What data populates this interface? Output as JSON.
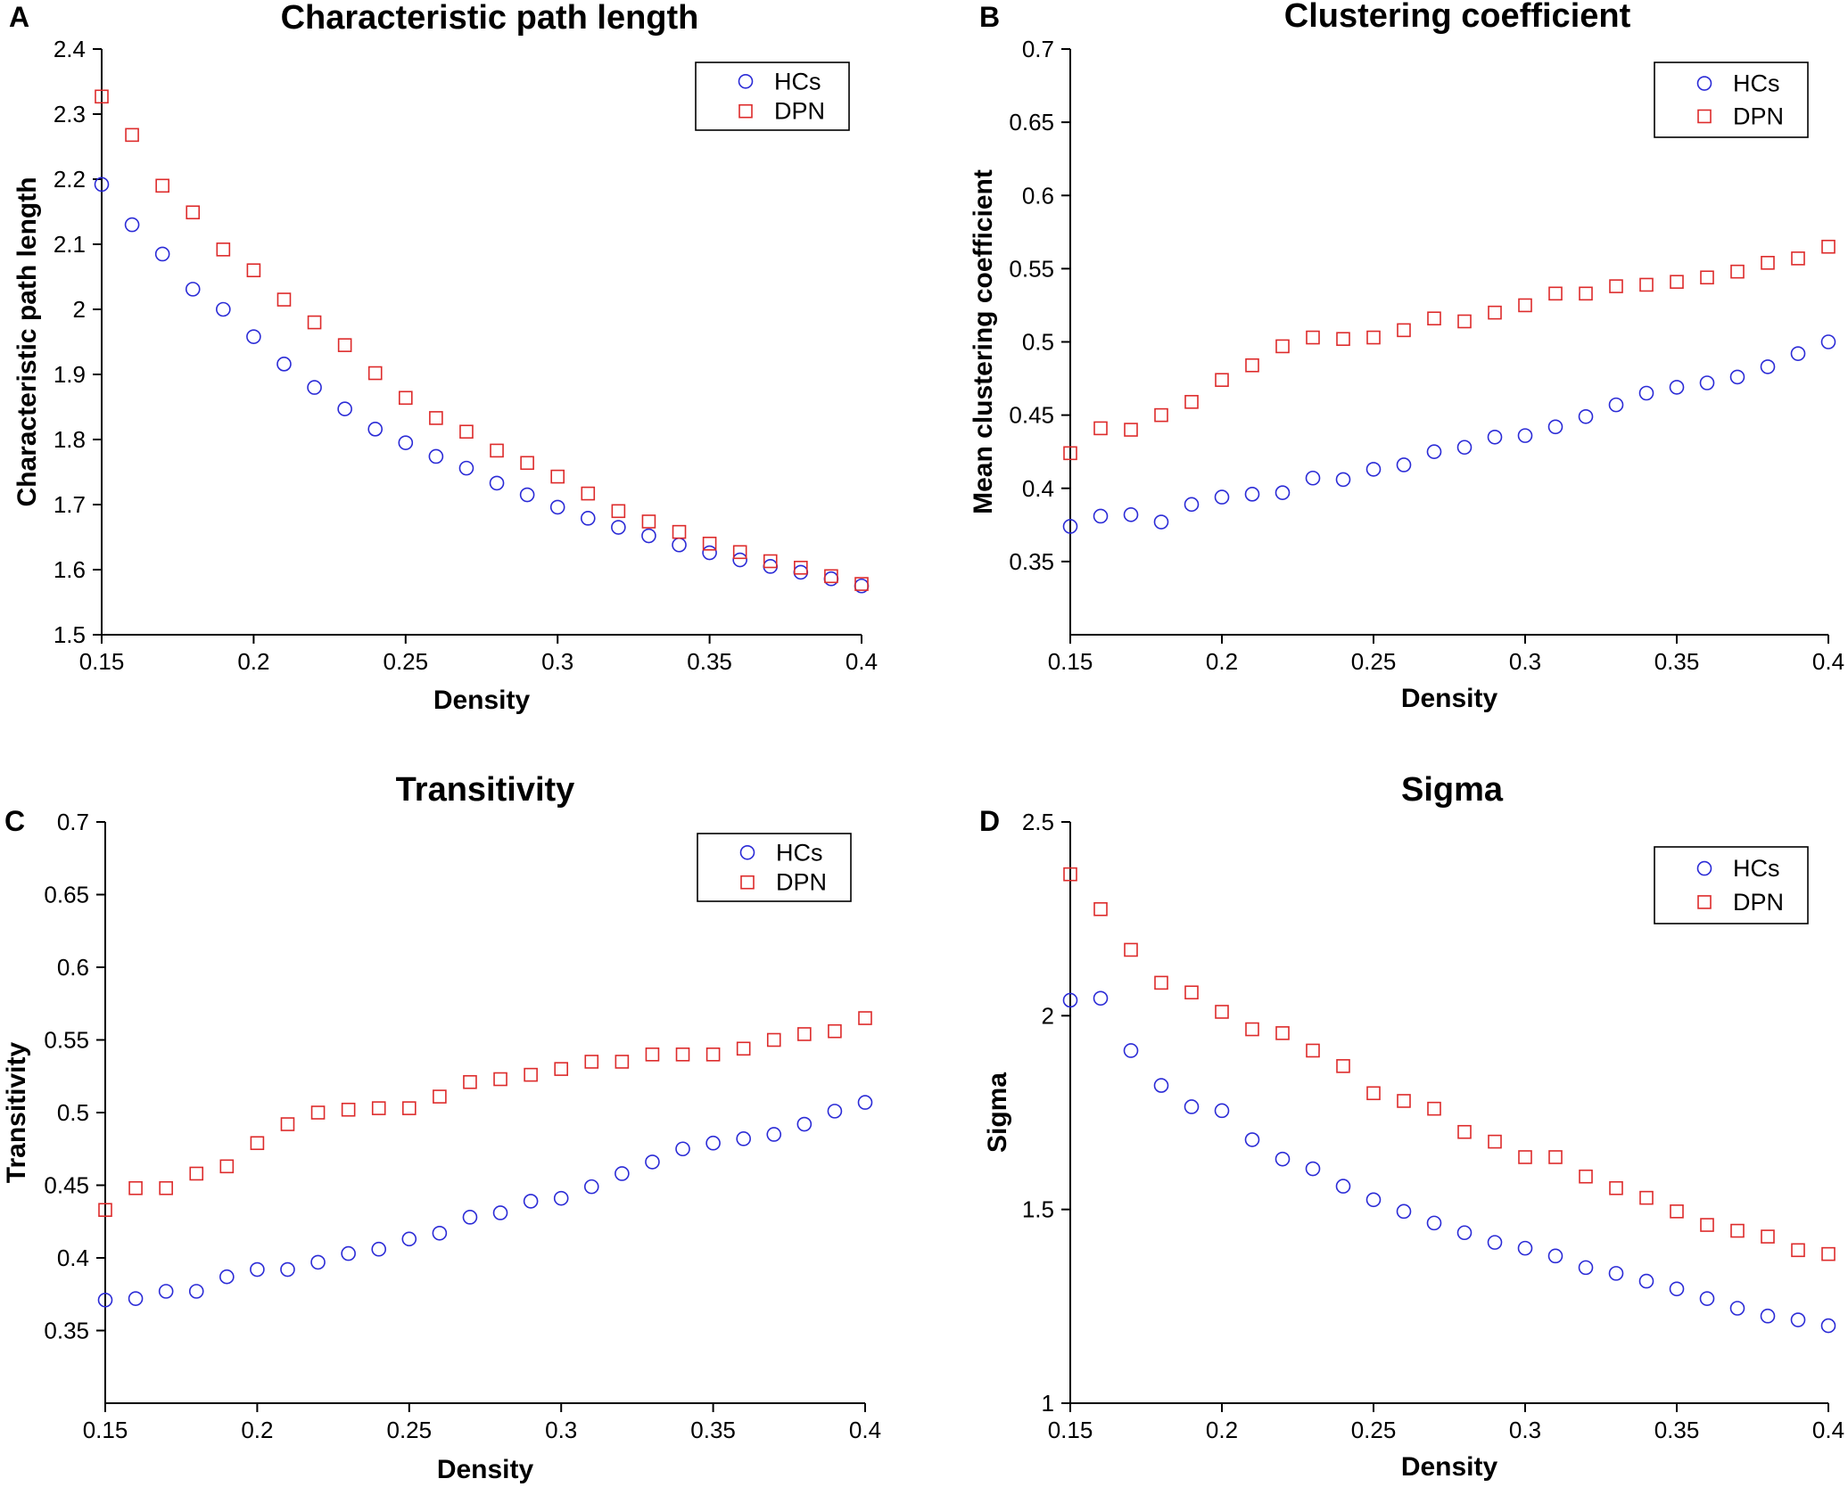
{
  "colors": {
    "hcs": "#2b2bd6",
    "dpn": "#dd2b2b",
    "axis": "#000000"
  },
  "chart_data": [
    {
      "type": "scatter",
      "panel_label": "A",
      "title": "Characteristic path length",
      "xlabel": "Density",
      "ylabel": "Characteristic path length",
      "xlim": [
        0.15,
        0.4
      ],
      "ylim": [
        1.5,
        2.4
      ],
      "xticks": [
        0.15,
        0.2,
        0.25,
        0.3,
        0.35,
        0.4
      ],
      "xtick_labels": [
        "0.15",
        "0.2",
        "0.25",
        "0.3",
        "0.35",
        "0.4"
      ],
      "yticks": [
        1.5,
        1.6,
        1.7,
        1.8,
        1.9,
        2,
        2.1,
        2.2,
        2.3,
        2.4
      ],
      "ytick_labels": [
        "1.5",
        "1.6",
        "1.7",
        "1.8",
        "1.9",
        "2",
        "2.1",
        "2.2",
        "2.3",
        "2.4"
      ],
      "legend_position": "top-right",
      "x": [
        0.15,
        0.16,
        0.17,
        0.18,
        0.19,
        0.2,
        0.21,
        0.22,
        0.23,
        0.24,
        0.25,
        0.26,
        0.27,
        0.28,
        0.29,
        0.3,
        0.31,
        0.32,
        0.33,
        0.34,
        0.35,
        0.36,
        0.37,
        0.38,
        0.39,
        0.4
      ],
      "series": [
        {
          "name": "HCs",
          "marker": "circle",
          "values": [
            2.192,
            2.13,
            2.085,
            2.031,
            2.0,
            1.958,
            1.916,
            1.88,
            1.847,
            1.816,
            1.795,
            1.774,
            1.756,
            1.733,
            1.715,
            1.696,
            1.679,
            1.665,
            1.652,
            1.638,
            1.626,
            1.615,
            1.605,
            1.596,
            1.586,
            1.575
          ]
        },
        {
          "name": "DPN",
          "marker": "square",
          "values": [
            2.327,
            2.268,
            2.19,
            2.149,
            2.092,
            2.06,
            2.015,
            1.98,
            1.945,
            1.902,
            1.864,
            1.833,
            1.812,
            1.783,
            1.764,
            1.743,
            1.717,
            1.69,
            1.674,
            1.658,
            1.64,
            1.627,
            1.613,
            1.603,
            1.59,
            1.578
          ]
        }
      ]
    },
    {
      "type": "scatter",
      "panel_label": "B",
      "title": "Clustering coefficient",
      "xlabel": "Density",
      "ylabel": "Mean clustering coefficient",
      "xlim": [
        0.15,
        0.4
      ],
      "ylim": [
        0.3,
        0.7
      ],
      "xticks": [
        0.15,
        0.2,
        0.25,
        0.3,
        0.35,
        0.4
      ],
      "xtick_labels": [
        "0.15",
        "0.2",
        "0.25",
        "0.3",
        "0.35",
        "0.4"
      ],
      "yticks": [
        0.35,
        0.4,
        0.45,
        0.5,
        0.55,
        0.6,
        0.65,
        0.7
      ],
      "ytick_labels": [
        "0.35",
        "0.4",
        "0.45",
        "0.5",
        "0.55",
        "0.6",
        "0.65",
        "0.7"
      ],
      "legend_position": "top-right",
      "x": [
        0.15,
        0.16,
        0.17,
        0.18,
        0.19,
        0.2,
        0.21,
        0.22,
        0.23,
        0.24,
        0.25,
        0.26,
        0.27,
        0.28,
        0.29,
        0.3,
        0.31,
        0.32,
        0.33,
        0.34,
        0.35,
        0.36,
        0.37,
        0.38,
        0.39,
        0.4
      ],
      "series": [
        {
          "name": "HCs",
          "marker": "circle",
          "values": [
            0.374,
            0.381,
            0.382,
            0.377,
            0.389,
            0.394,
            0.396,
            0.397,
            0.407,
            0.406,
            0.413,
            0.416,
            0.425,
            0.428,
            0.435,
            0.436,
            0.442,
            0.449,
            0.457,
            0.465,
            0.469,
            0.472,
            0.476,
            0.483,
            0.492,
            0.5
          ]
        },
        {
          "name": "DPN",
          "marker": "square",
          "values": [
            0.424,
            0.441,
            0.44,
            0.45,
            0.459,
            0.474,
            0.484,
            0.497,
            0.503,
            0.502,
            0.503,
            0.508,
            0.516,
            0.514,
            0.52,
            0.525,
            0.533,
            0.533,
            0.538,
            0.539,
            0.541,
            0.544,
            0.548,
            0.554,
            0.557,
            0.565
          ]
        }
      ]
    },
    {
      "type": "scatter",
      "panel_label": "C",
      "title": "Transitivity",
      "xlabel": "Density",
      "ylabel": "Transitivity",
      "xlim": [
        0.15,
        0.4
      ],
      "ylim": [
        0.3,
        0.7
      ],
      "xticks": [
        0.15,
        0.2,
        0.25,
        0.3,
        0.35,
        0.4
      ],
      "xtick_labels": [
        "0.15",
        "0.2",
        "0.25",
        "0.3",
        "0.35",
        "0.4"
      ],
      "yticks": [
        0.35,
        0.4,
        0.45,
        0.5,
        0.55,
        0.6,
        0.65,
        0.7
      ],
      "ytick_labels": [
        "0.35",
        "0.4",
        "0.45",
        "0.5",
        "0.55",
        "0.6",
        "0.65",
        "0.7"
      ],
      "legend_position": "top-right",
      "x": [
        0.15,
        0.16,
        0.17,
        0.18,
        0.19,
        0.2,
        0.21,
        0.22,
        0.23,
        0.24,
        0.25,
        0.26,
        0.27,
        0.28,
        0.29,
        0.3,
        0.31,
        0.32,
        0.33,
        0.34,
        0.35,
        0.36,
        0.37,
        0.38,
        0.39,
        0.4
      ],
      "series": [
        {
          "name": "HCs",
          "marker": "circle",
          "values": [
            0.371,
            0.372,
            0.377,
            0.377,
            0.387,
            0.392,
            0.392,
            0.397,
            0.403,
            0.406,
            0.413,
            0.417,
            0.428,
            0.431,
            0.439,
            0.441,
            0.449,
            0.458,
            0.466,
            0.475,
            0.479,
            0.482,
            0.485,
            0.492,
            0.501,
            0.507
          ]
        },
        {
          "name": "DPN",
          "marker": "square",
          "values": [
            0.433,
            0.448,
            0.448,
            0.458,
            0.463,
            0.479,
            0.492,
            0.5,
            0.502,
            0.503,
            0.503,
            0.511,
            0.521,
            0.523,
            0.526,
            0.53,
            0.535,
            0.535,
            0.54,
            0.54,
            0.54,
            0.544,
            0.55,
            0.554,
            0.556,
            0.565
          ]
        }
      ]
    },
    {
      "type": "scatter",
      "panel_label": "D",
      "title": "Sigma",
      "xlabel": "Density",
      "ylabel": "Sigma",
      "xlim": [
        0.15,
        0.4
      ],
      "ylim": [
        1,
        2.5
      ],
      "xticks": [
        0.15,
        0.2,
        0.25,
        0.3,
        0.35,
        0.4
      ],
      "xtick_labels": [
        "0.15",
        "0.2",
        "0.25",
        "0.3",
        "0.35",
        "0.4"
      ],
      "yticks": [
        1,
        1.5,
        2,
        2.5
      ],
      "ytick_labels": [
        "1",
        "1.5",
        "2",
        "2.5"
      ],
      "legend_position": "top-right",
      "x": [
        0.15,
        0.16,
        0.17,
        0.18,
        0.19,
        0.2,
        0.21,
        0.22,
        0.23,
        0.24,
        0.25,
        0.26,
        0.27,
        0.28,
        0.29,
        0.3,
        0.31,
        0.32,
        0.33,
        0.34,
        0.35,
        0.36,
        0.37,
        0.38,
        0.39,
        0.4
      ],
      "series": [
        {
          "name": "HCs",
          "marker": "circle",
          "values": [
            2.04,
            2.045,
            1.91,
            1.82,
            1.765,
            1.755,
            1.68,
            1.63,
            1.605,
            1.56,
            1.525,
            1.495,
            1.465,
            1.44,
            1.415,
            1.4,
            1.38,
            1.35,
            1.335,
            1.315,
            1.295,
            1.27,
            1.245,
            1.225,
            1.215,
            1.2
          ]
        },
        {
          "name": "DPN",
          "marker": "square",
          "values": [
            2.365,
            2.275,
            2.17,
            2.085,
            2.06,
            2.01,
            1.965,
            1.955,
            1.91,
            1.87,
            1.8,
            1.78,
            1.76,
            1.7,
            1.675,
            1.635,
            1.635,
            1.585,
            1.555,
            1.53,
            1.495,
            1.46,
            1.445,
            1.43,
            1.395,
            1.385
          ]
        }
      ]
    }
  ]
}
